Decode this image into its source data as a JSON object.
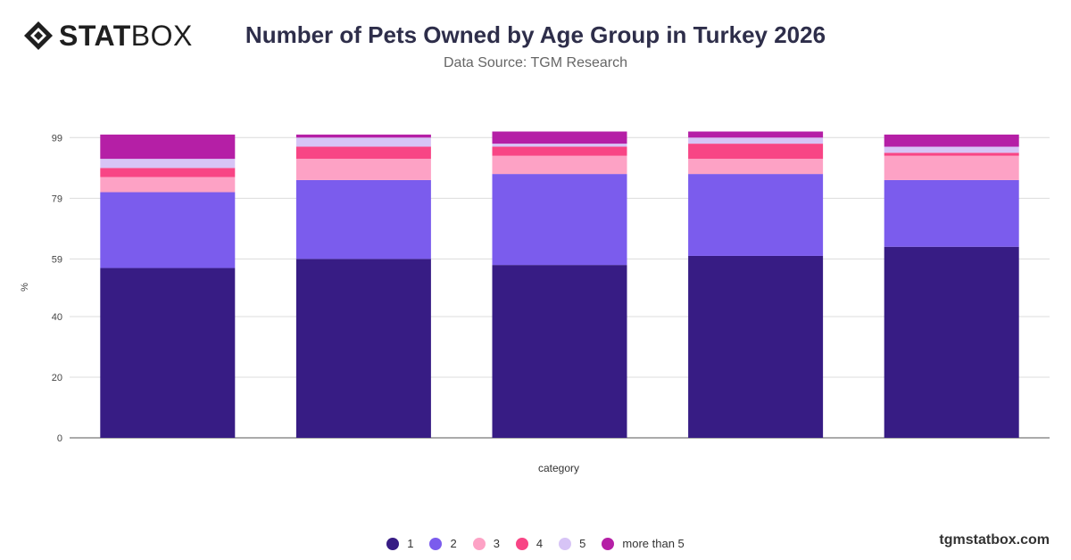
{
  "brand": {
    "bold": "STAT",
    "light": "BOX",
    "watermark": "tgmstatbox.com"
  },
  "header": {
    "title": "Number of Pets Owned by Age Group in Turkey 2026",
    "subtitle": "Data Source: TGM Research"
  },
  "chart_data": {
    "type": "bar",
    "stacked": true,
    "title": "Number of Pets Owned by Age Group in Turkey 2026",
    "subtitle": "Data Source: TGM Research",
    "xlabel": "category",
    "ylabel": "%",
    "ylim": [
      0,
      100
    ],
    "yticks": [
      0,
      20,
      40,
      59,
      79,
      99
    ],
    "grid": true,
    "legend_position": "bottom",
    "categories": [
      "",
      "",
      "",
      "",
      ""
    ],
    "series": [
      {
        "name": "1",
        "color": "#371c84",
        "values": [
          56,
          59,
          57,
          60,
          63
        ]
      },
      {
        "name": "2",
        "color": "#7b5ced",
        "values": [
          25,
          26,
          30,
          27,
          22
        ]
      },
      {
        "name": "3",
        "color": "#fda2c5",
        "values": [
          5,
          7,
          6,
          5,
          8
        ]
      },
      {
        "name": "4",
        "color": "#f84585",
        "values": [
          3,
          4,
          3,
          5,
          1
        ]
      },
      {
        "name": "5",
        "color": "#d7c4f6",
        "values": [
          3,
          3,
          1,
          2,
          2
        ]
      },
      {
        "name": "more than 5",
        "color": "#b51fa6",
        "values": [
          8,
          1,
          4,
          2,
          4
        ]
      }
    ]
  }
}
